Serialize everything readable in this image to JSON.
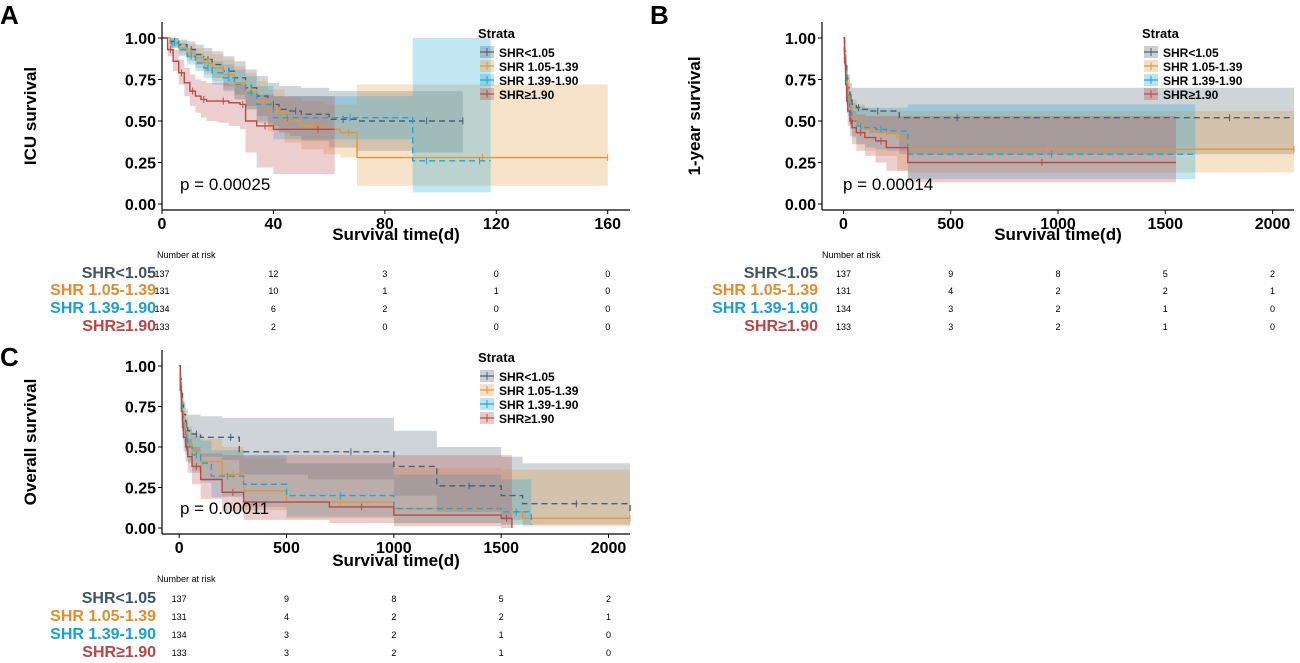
{
  "colors": {
    "s1": "#4b5f6e",
    "s2": "#e2963c",
    "s3": "#1ba6d9",
    "s4": "#b84a4a",
    "risk_s1": "#3f5461",
    "risk_s2": "#e08d2f",
    "risk_s3": "#1a9fcf",
    "risk_s4": "#b84545"
  },
  "strata": [
    "SHR<1.05",
    "SHR 1.05-1.39",
    "SHR 1.39-1.90",
    "SHR≥1.90"
  ],
  "chart_data": [
    {
      "id": "A",
      "type": "line",
      "panel_label": "A",
      "ylabel": "ICU survival",
      "xlabel": "Survival time(d)",
      "xlim": [
        0,
        168
      ],
      "ylim": [
        0,
        1
      ],
      "xticks": [
        0,
        40,
        80,
        120,
        160
      ],
      "yticks": [
        "0.00",
        "0.25",
        "0.50",
        "0.75",
        "1.00"
      ],
      "pvalue": "p = 0.00025",
      "legend": {
        "title": "Strata",
        "position": "top-right"
      },
      "risk_title": "Number at risk",
      "risk_times": [
        0,
        40,
        80,
        120,
        160
      ],
      "risk": [
        [
          137,
          12,
          3,
          0,
          0
        ],
        [
          131,
          10,
          1,
          1,
          0
        ],
        [
          134,
          6,
          2,
          0,
          0
        ],
        [
          133,
          2,
          0,
          0,
          0
        ]
      ],
      "series": [
        {
          "name": "SHR<1.05",
          "dash": "6,4",
          "x": [
            0,
            3,
            6,
            9,
            12,
            15,
            18,
            22,
            26,
            30,
            34,
            38,
            42,
            46,
            50,
            60,
            70,
            90,
            100,
            108
          ],
          "y": [
            1,
            0.98,
            0.96,
            0.93,
            0.9,
            0.87,
            0.84,
            0.8,
            0.76,
            0.7,
            0.65,
            0.6,
            0.57,
            0.56,
            0.54,
            0.51,
            0.5,
            0.5,
            0.5,
            0.5
          ],
          "lo": [
            1,
            0.95,
            0.92,
            0.88,
            0.84,
            0.8,
            0.76,
            0.71,
            0.66,
            0.59,
            0.53,
            0.47,
            0.43,
            0.41,
            0.38,
            0.34,
            0.32,
            0.31,
            0.31,
            0.31
          ],
          "hi": [
            1,
            1,
            0.99,
            0.98,
            0.96,
            0.94,
            0.92,
            0.89,
            0.86,
            0.81,
            0.77,
            0.73,
            0.71,
            0.71,
            0.7,
            0.68,
            0.68,
            0.68,
            0.68,
            0.68
          ]
        },
        {
          "name": "SHR 1.05-1.39",
          "dash": "",
          "x": [
            0,
            3,
            6,
            9,
            12,
            15,
            18,
            22,
            26,
            30,
            34,
            38,
            44,
            50,
            58,
            64,
            70,
            100,
            130,
            160
          ],
          "y": [
            1,
            0.97,
            0.94,
            0.91,
            0.88,
            0.85,
            0.82,
            0.78,
            0.73,
            0.68,
            0.62,
            0.56,
            0.5,
            0.47,
            0.45,
            0.43,
            0.28,
            0.28,
            0.28,
            0.28
          ],
          "lo": [
            1,
            0.94,
            0.9,
            0.86,
            0.82,
            0.78,
            0.74,
            0.69,
            0.63,
            0.57,
            0.5,
            0.44,
            0.37,
            0.33,
            0.3,
            0.28,
            0.11,
            0.11,
            0.11,
            0.11
          ],
          "hi": [
            1,
            1,
            0.98,
            0.96,
            0.94,
            0.92,
            0.9,
            0.87,
            0.83,
            0.79,
            0.74,
            0.69,
            0.64,
            0.62,
            0.6,
            0.6,
            0.72,
            0.72,
            0.72,
            0.72
          ]
        },
        {
          "name": "SHR 1.39-1.90",
          "dash": "6,4",
          "x": [
            0,
            3,
            6,
            9,
            12,
            15,
            18,
            22,
            26,
            30,
            34,
            40,
            50,
            60,
            75,
            90,
            100,
            110,
            118
          ],
          "y": [
            1,
            0.97,
            0.93,
            0.89,
            0.85,
            0.82,
            0.79,
            0.76,
            0.72,
            0.67,
            0.6,
            0.52,
            0.52,
            0.52,
            0.52,
            0.26,
            0.26,
            0.26,
            0.26
          ],
          "lo": [
            1,
            0.94,
            0.89,
            0.84,
            0.8,
            0.76,
            0.72,
            0.68,
            0.63,
            0.57,
            0.49,
            0.39,
            0.39,
            0.39,
            0.39,
            0.07,
            0.07,
            0.07,
            0.07
          ],
          "hi": [
            1,
            1,
            0.97,
            0.94,
            0.91,
            0.88,
            0.86,
            0.84,
            0.81,
            0.77,
            0.71,
            0.65,
            0.65,
            0.65,
            0.65,
            1,
            1,
            1,
            1
          ]
        },
        {
          "name": "SHR≥1.90",
          "dash": "",
          "x": [
            0,
            2,
            4,
            6,
            8,
            10,
            12,
            14,
            16,
            20,
            24,
            28,
            30,
            34,
            40,
            50,
            62
          ],
          "y": [
            1,
            0.93,
            0.86,
            0.79,
            0.73,
            0.68,
            0.65,
            0.63,
            0.62,
            0.62,
            0.61,
            0.6,
            0.5,
            0.47,
            0.45,
            0.45,
            0.45
          ],
          "lo": [
            1,
            0.89,
            0.8,
            0.72,
            0.65,
            0.59,
            0.55,
            0.52,
            0.5,
            0.49,
            0.47,
            0.45,
            0.31,
            0.22,
            0.18,
            0.18,
            0.18
          ],
          "hi": [
            1,
            0.98,
            0.93,
            0.87,
            0.82,
            0.78,
            0.75,
            0.74,
            0.73,
            0.73,
            0.72,
            0.72,
            0.67,
            0.66,
            0.65,
            0.65,
            0.65
          ]
        }
      ]
    },
    {
      "id": "B",
      "type": "line",
      "panel_label": "B",
      "ylabel": "1-year survival",
      "xlabel": "Survival time(d)",
      "xlim": [
        -100,
        2100
      ],
      "ylim": [
        0,
        1
      ],
      "xticks": [
        0,
        500,
        1000,
        1500,
        2000
      ],
      "yticks": [
        "0.00",
        "0.25",
        "0.50",
        "0.75",
        "1.00"
      ],
      "pvalue": "p = 0.00014",
      "legend": {
        "title": "Strata",
        "position": "top-right"
      },
      "risk_title": "Number at risk",
      "risk_times": [
        0,
        500,
        1000,
        1500,
        2000
      ],
      "risk": [
        [
          137,
          9,
          8,
          5,
          2
        ],
        [
          131,
          4,
          2,
          2,
          1
        ],
        [
          134,
          3,
          2,
          1,
          0
        ],
        [
          133,
          3,
          2,
          1,
          0
        ]
      ],
      "series": [
        {
          "name": "SHR<1.05",
          "dash": "6,4",
          "x": [
            0,
            5,
            10,
            15,
            20,
            30,
            40,
            60,
            80,
            120,
            200,
            260,
            800,
            1500,
            2100
          ],
          "y": [
            1,
            0.92,
            0.84,
            0.76,
            0.7,
            0.64,
            0.6,
            0.58,
            0.57,
            0.56,
            0.56,
            0.52,
            0.52,
            0.52,
            0.52
          ],
          "lo": [
            1,
            0.88,
            0.78,
            0.69,
            0.62,
            0.55,
            0.5,
            0.47,
            0.45,
            0.43,
            0.42,
            0.3,
            0.3,
            0.3,
            0.3
          ],
          "hi": [
            1,
            0.97,
            0.9,
            0.83,
            0.78,
            0.73,
            0.7,
            0.7,
            0.7,
            0.7,
            0.7,
            0.7,
            0.7,
            0.7,
            0.7
          ]
        },
        {
          "name": "SHR 1.05-1.39",
          "dash": "",
          "x": [
            0,
            5,
            10,
            15,
            20,
            30,
            40,
            60,
            100,
            150,
            250,
            300,
            1600,
            2100
          ],
          "y": [
            1,
            0.9,
            0.8,
            0.72,
            0.65,
            0.58,
            0.52,
            0.48,
            0.45,
            0.43,
            0.4,
            0.33,
            0.33,
            0.33
          ],
          "lo": [
            1,
            0.86,
            0.74,
            0.64,
            0.56,
            0.48,
            0.41,
            0.36,
            0.32,
            0.29,
            0.2,
            0.19,
            0.19,
            0.19
          ],
          "hi": [
            1,
            0.95,
            0.87,
            0.8,
            0.74,
            0.68,
            0.63,
            0.6,
            0.58,
            0.57,
            0.56,
            0.56,
            0.56,
            0.56
          ]
        },
        {
          "name": "SHR 1.39-1.90",
          "dash": "6,4",
          "x": [
            0,
            5,
            10,
            15,
            20,
            30,
            40,
            60,
            100,
            150,
            200,
            300,
            1640
          ],
          "y": [
            1,
            0.88,
            0.78,
            0.69,
            0.62,
            0.55,
            0.5,
            0.47,
            0.46,
            0.45,
            0.44,
            0.3,
            0.3
          ],
          "lo": [
            1,
            0.84,
            0.72,
            0.61,
            0.53,
            0.45,
            0.4,
            0.36,
            0.34,
            0.33,
            0.32,
            0.15,
            0.15
          ],
          "hi": [
            1,
            0.93,
            0.85,
            0.77,
            0.71,
            0.65,
            0.61,
            0.59,
            0.58,
            0.58,
            0.58,
            0.6,
            0.6
          ]
        },
        {
          "name": "SHR≥1.90",
          "dash": "",
          "x": [
            0,
            5,
            10,
            15,
            20,
            30,
            40,
            60,
            100,
            150,
            200,
            300,
            1550
          ],
          "y": [
            1,
            0.85,
            0.72,
            0.62,
            0.56,
            0.5,
            0.46,
            0.43,
            0.4,
            0.38,
            0.34,
            0.25,
            0.25
          ],
          "lo": [
            1,
            0.8,
            0.66,
            0.55,
            0.47,
            0.41,
            0.36,
            0.32,
            0.29,
            0.25,
            0.2,
            0.13,
            0.13
          ],
          "hi": [
            1,
            0.9,
            0.78,
            0.69,
            0.64,
            0.59,
            0.56,
            0.54,
            0.53,
            0.53,
            0.53,
            0.53,
            0.53
          ]
        }
      ]
    },
    {
      "id": "C",
      "type": "line",
      "panel_label": "C",
      "ylabel": "Overall survival",
      "xlabel": "Survival time(d)",
      "xlim": [
        -80,
        2100
      ],
      "ylim": [
        0,
        1
      ],
      "xticks": [
        0,
        500,
        1000,
        1500,
        2000
      ],
      "yticks": [
        "0.00",
        "0.25",
        "0.50",
        "0.75",
        "1.00"
      ],
      "pvalue": "p = 0.00011",
      "legend": {
        "title": "Strata",
        "position": "top-right"
      },
      "risk_title": "Number at risk",
      "risk_times": [
        0,
        500,
        1000,
        1500,
        2000
      ],
      "risk": [
        [
          137,
          9,
          8,
          5,
          2
        ],
        [
          131,
          4,
          2,
          2,
          1
        ],
        [
          134,
          3,
          2,
          1,
          0
        ],
        [
          133,
          3,
          2,
          1,
          0
        ]
      ],
      "series": [
        {
          "name": "SHR<1.05",
          "dash": "6,4",
          "x": [
            0,
            5,
            10,
            15,
            20,
            30,
            40,
            60,
            100,
            200,
            280,
            600,
            1000,
            1200,
            1500,
            1600,
            2100
          ],
          "y": [
            1,
            0.92,
            0.84,
            0.76,
            0.7,
            0.64,
            0.6,
            0.58,
            0.56,
            0.56,
            0.47,
            0.47,
            0.38,
            0.26,
            0.2,
            0.15,
            0.1
          ],
          "lo": [
            1,
            0.88,
            0.78,
            0.69,
            0.62,
            0.55,
            0.5,
            0.47,
            0.44,
            0.42,
            0.33,
            0.3,
            0.2,
            0.1,
            0.05,
            0.02,
            0.01
          ],
          "hi": [
            1,
            0.97,
            0.9,
            0.83,
            0.78,
            0.73,
            0.7,
            0.7,
            0.69,
            0.68,
            0.68,
            0.68,
            0.6,
            0.5,
            0.44,
            0.4,
            0.36
          ]
        },
        {
          "name": "SHR 1.05-1.39",
          "dash": "",
          "x": [
            0,
            5,
            10,
            15,
            20,
            30,
            40,
            60,
            100,
            200,
            300,
            500,
            1000,
            1500,
            1600,
            2100
          ],
          "y": [
            1,
            0.9,
            0.8,
            0.72,
            0.65,
            0.58,
            0.52,
            0.46,
            0.41,
            0.33,
            0.23,
            0.16,
            0.12,
            0.1,
            0.06,
            0.06
          ],
          "lo": [
            1,
            0.86,
            0.74,
            0.64,
            0.56,
            0.48,
            0.41,
            0.35,
            0.29,
            0.2,
            0.11,
            0.06,
            0.03,
            0.02,
            0.01,
            0.01
          ],
          "hi": [
            1,
            0.95,
            0.87,
            0.8,
            0.74,
            0.68,
            0.63,
            0.59,
            0.55,
            0.5,
            0.43,
            0.4,
            0.37,
            0.36,
            0.36,
            0.36
          ]
        },
        {
          "name": "SHR 1.39-1.90",
          "dash": "6,4",
          "x": [
            0,
            5,
            10,
            15,
            20,
            30,
            40,
            60,
            100,
            150,
            300,
            500,
            1000,
            1500,
            1640
          ],
          "y": [
            1,
            0.88,
            0.78,
            0.69,
            0.62,
            0.55,
            0.5,
            0.45,
            0.4,
            0.32,
            0.27,
            0.2,
            0.12,
            0.1,
            0.02
          ],
          "lo": [
            1,
            0.84,
            0.72,
            0.61,
            0.53,
            0.45,
            0.4,
            0.34,
            0.28,
            0.19,
            0.13,
            0.07,
            0.03,
            0.02,
            0
          ],
          "hi": [
            1,
            0.93,
            0.85,
            0.77,
            0.71,
            0.65,
            0.61,
            0.57,
            0.54,
            0.48,
            0.45,
            0.4,
            0.33,
            0.3,
            0.3
          ]
        },
        {
          "name": "SHR≥1.90",
          "dash": "",
          "x": [
            0,
            5,
            10,
            15,
            20,
            30,
            40,
            60,
            100,
            200,
            300,
            700,
            1000,
            1500,
            1550
          ],
          "y": [
            1,
            0.85,
            0.72,
            0.62,
            0.56,
            0.5,
            0.44,
            0.38,
            0.3,
            0.22,
            0.16,
            0.13,
            0.08,
            0.06,
            0
          ],
          "lo": [
            1,
            0.8,
            0.66,
            0.55,
            0.47,
            0.41,
            0.34,
            0.27,
            0.18,
            0.1,
            0.05,
            0.03,
            0.01,
            0,
            0
          ],
          "hi": [
            1,
            0.9,
            0.78,
            0.69,
            0.64,
            0.59,
            0.55,
            0.5,
            0.46,
            0.45,
            0.45,
            0.45,
            0.45,
            0.45,
            0.45
          ]
        }
      ]
    }
  ]
}
